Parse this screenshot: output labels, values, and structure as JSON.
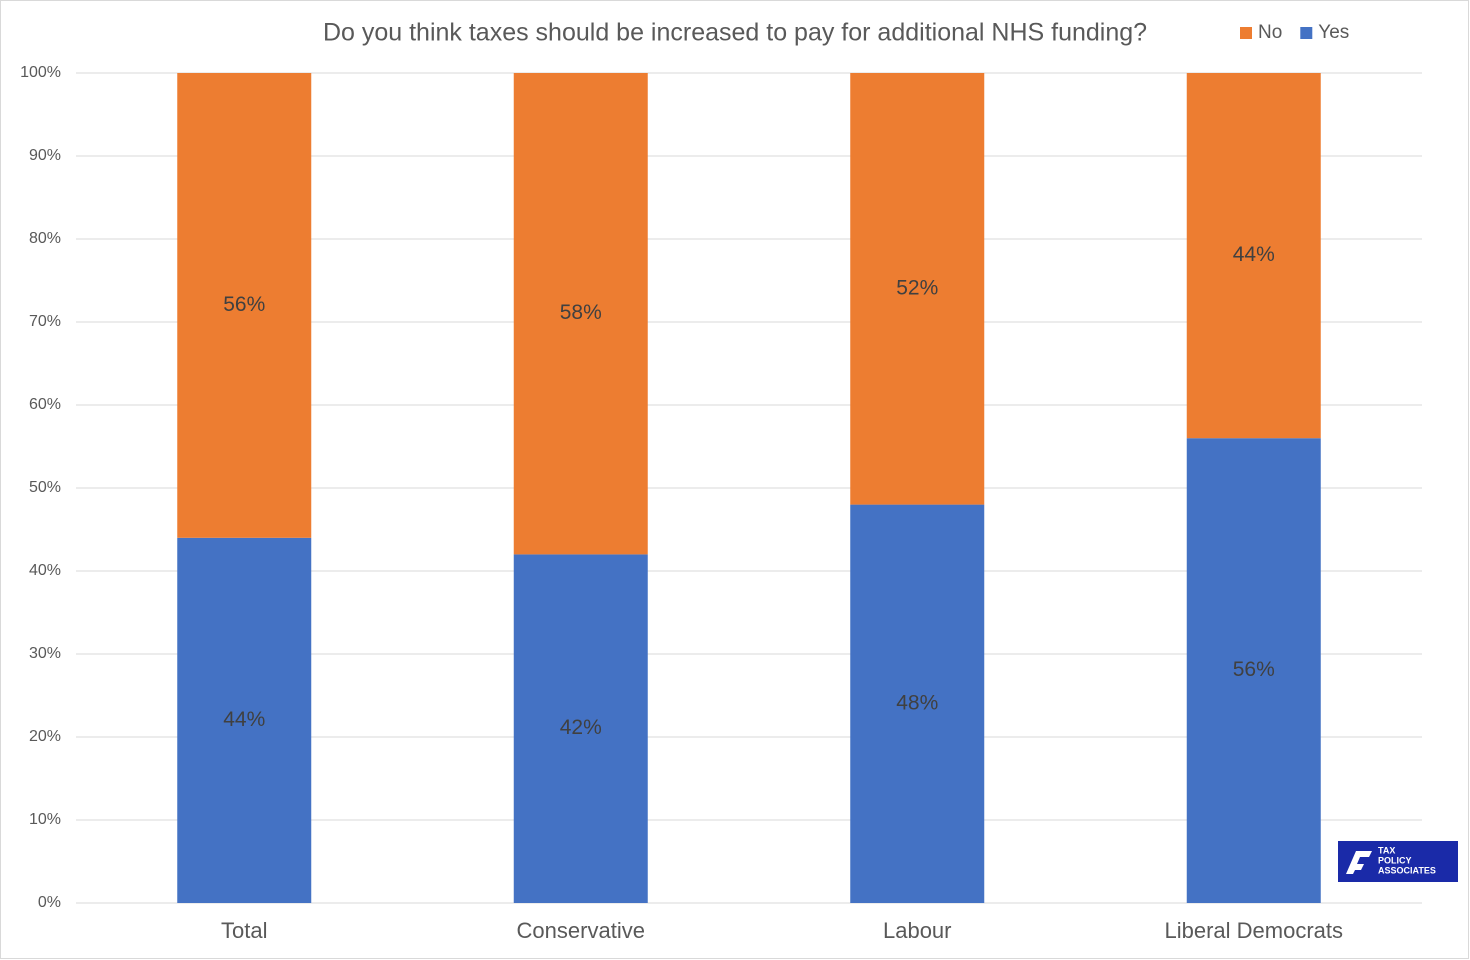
{
  "chart_data": {
    "type": "stacked_bar",
    "title": "Do you think taxes should be increased to pay for additional NHS funding?",
    "categories": [
      "Total",
      "Conservative",
      "Labour",
      "Liberal Democrats"
    ],
    "series": [
      {
        "name": "Yes",
        "color": "#4472c4",
        "values": [
          44,
          42,
          48,
          56
        ],
        "value_labels": [
          "44%",
          "42%",
          "48%",
          "56%"
        ]
      },
      {
        "name": "No",
        "color": "#ed7d31",
        "values": [
          56,
          58,
          52,
          44
        ],
        "value_labels": [
          "56%",
          "58%",
          "52%",
          "44%"
        ]
      }
    ],
    "ylim": [
      0,
      100
    ],
    "yticks": [
      {
        "value": 0,
        "label": "0%"
      },
      {
        "value": 10,
        "label": "10%"
      },
      {
        "value": 20,
        "label": "20%"
      },
      {
        "value": 30,
        "label": "30%"
      },
      {
        "value": 40,
        "label": "40%"
      },
      {
        "value": 50,
        "label": "50%"
      },
      {
        "value": 60,
        "label": "60%"
      },
      {
        "value": 70,
        "label": "70%"
      },
      {
        "value": 80,
        "label": "80%"
      },
      {
        "value": 90,
        "label": "90%"
      },
      {
        "value": 100,
        "label": "100%"
      }
    ],
    "grid": true,
    "legend": "top-right"
  },
  "logo": {
    "lines": [
      "TAX",
      "POLICY",
      "ASSOCIATES"
    ]
  }
}
